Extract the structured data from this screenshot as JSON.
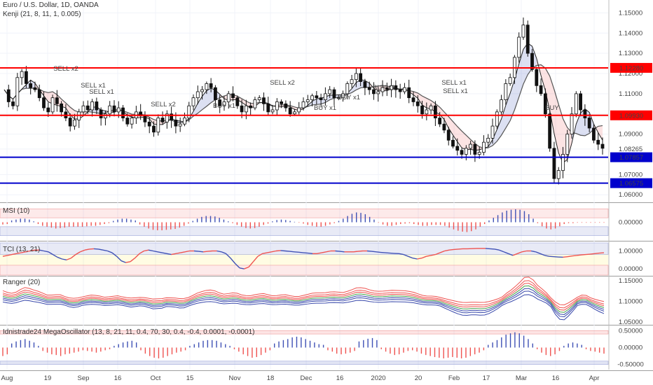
{
  "chart_data": [
    {
      "type": "candlestick",
      "title": "Euro / U.S. Dollar, 1D, OANDA",
      "subtitle": "Kenji (21, 8, 11, 1, 0.005)",
      "ylim": [
        1.058,
        1.155
      ],
      "y_ticks": [
        "1.15000",
        "1.14000",
        "1.13000",
        "1.12000",
        "1.11000",
        "1.10000",
        "1.09000",
        "1.08265",
        "1.07000",
        "1.06000"
      ],
      "levels": [
        {
          "value": 1.1228,
          "label": "1.12280",
          "color": "#ff0000"
        },
        {
          "value": 1.0993,
          "label": "1.09930",
          "color": "#ff0000"
        },
        {
          "value": 1.07857,
          "label": "1.07857",
          "color": "#0000cc"
        },
        {
          "value": 1.06575,
          "label": "1.06575",
          "color": "#0000cc"
        }
      ],
      "signals": [
        {
          "text": "SELL x2",
          "color": "#e53935"
        },
        {
          "text": "SELL x1",
          "color": "#e53935"
        },
        {
          "text": "SELL x1",
          "color": "#e53935"
        },
        {
          "text": "SELL x2",
          "color": "#e53935"
        },
        {
          "text": "SELL x2",
          "color": "#e53935"
        },
        {
          "text": "SELL x1",
          "color": "#e53935"
        },
        {
          "text": "SELL x1",
          "color": "#e53935"
        },
        {
          "text": "BUY x1",
          "color": "#5c6bc0"
        },
        {
          "text": "BUY x1",
          "color": "#5c6bc0"
        },
        {
          "text": "BUY x1",
          "color": "#5c6bc0"
        },
        {
          "text": "BUY x1",
          "color": "#5c6bc0"
        },
        {
          "text": "BUY",
          "color": "#5c6bc0"
        }
      ],
      "close_path": [
        1.112,
        1.106,
        1.104,
        1.118,
        1.121,
        1.115,
        1.113,
        1.112,
        1.108,
        1.103,
        1.101,
        1.108,
        1.105,
        1.101,
        1.098,
        1.094,
        1.097,
        1.101,
        1.104,
        1.102,
        1.106,
        1.102,
        1.098,
        1.1,
        1.104,
        1.101,
        1.103,
        1.098,
        1.095,
        1.098,
        1.101,
        1.099,
        1.096,
        1.094,
        1.091,
        1.098,
        1.096,
        1.1,
        1.097,
        1.094,
        1.095,
        1.098,
        1.104,
        1.108,
        1.111,
        1.112,
        1.115,
        1.113,
        1.107,
        1.104,
        1.106,
        1.11,
        1.108,
        1.104,
        1.101,
        1.104,
        1.103,
        1.107,
        1.108,
        1.105,
        1.101,
        1.102,
        1.106,
        1.105,
        1.103,
        1.1,
        1.101,
        1.103,
        1.106,
        1.107,
        1.109,
        1.108,
        1.107,
        1.11,
        1.112,
        1.108,
        1.108,
        1.11,
        1.115,
        1.117,
        1.12,
        1.116,
        1.113,
        1.112,
        1.11,
        1.111,
        1.113,
        1.112,
        1.114,
        1.112,
        1.111,
        1.113,
        1.108,
        1.106,
        1.104,
        1.1,
        1.102,
        1.104,
        1.098,
        1.095,
        1.092,
        1.087,
        1.084,
        1.082,
        1.08,
        1.083,
        1.085,
        1.08,
        1.081,
        1.086,
        1.088,
        1.094,
        1.101,
        1.107,
        1.115,
        1.118,
        1.128,
        1.138,
        1.144,
        1.13,
        1.122,
        1.114,
        1.11,
        1.1,
        1.083,
        1.068,
        1.072,
        1.08,
        1.09,
        1.1,
        1.11,
        1.102,
        1.098,
        1.093,
        1.087,
        1.085,
        1.083
      ]
    },
    {
      "type": "histogram",
      "title": "MSI (10)",
      "ylim": [
        -0.04,
        0.04
      ],
      "y_ticks": [
        "0.00000"
      ],
      "values": [
        -0.005,
        -0.004,
        0.004,
        0.006,
        0.008,
        0.008,
        0.006,
        0.002,
        -0.004,
        -0.008,
        -0.01,
        -0.012,
        -0.014,
        -0.013,
        -0.012,
        -0.01,
        -0.01,
        -0.01,
        -0.01,
        -0.009,
        -0.008,
        -0.008,
        -0.006,
        -0.004,
        -0.002,
        0.003,
        0.006,
        0.008,
        0.008,
        0.006,
        0.004,
        -0.005,
        -0.01,
        -0.014,
        -0.017,
        -0.018,
        -0.018,
        -0.017,
        -0.016,
        -0.015,
        -0.012,
        -0.008,
        -0.003,
        0.003,
        0.008,
        0.012,
        0.014,
        0.014,
        0.013,
        0.01,
        0.006,
        0.002,
        -0.002,
        -0.006,
        -0.01,
        -0.013,
        -0.014,
        -0.013,
        -0.01,
        -0.006,
        -0.003,
        0.002,
        0.005,
        0.006,
        0.005,
        0.003,
        0.001,
        -0.001,
        -0.003,
        -0.006,
        -0.008,
        -0.01,
        -0.01,
        -0.008,
        -0.005,
        -0.002,
        0.003,
        0.008,
        0.014,
        0.019,
        0.022,
        0.021,
        0.018,
        0.012,
        0.006,
        -0.001,
        -0.005,
        -0.008,
        -0.008,
        -0.006,
        -0.004,
        -0.003,
        -0.002,
        -0.004,
        -0.006,
        -0.008,
        -0.008,
        -0.006,
        -0.006,
        -0.006,
        -0.008,
        -0.012,
        -0.016,
        -0.019,
        -0.021,
        -0.022,
        -0.02,
        -0.016,
        -0.01,
        -0.004,
        0.004,
        0.01,
        0.016,
        0.022,
        0.026,
        0.028,
        0.029,
        0.028,
        0.025,
        0.018,
        0.008,
        -0.002,
        -0.009,
        -0.014,
        -0.016,
        -0.014,
        -0.009,
        -0.004,
        -0.002,
        -0.002,
        -0.001,
        -0.001,
        -0.001,
        -0.001,
        -0.001,
        -0.001,
        -0.001
      ]
    },
    {
      "type": "line",
      "title": "TCI (13, 21)",
      "ylim": [
        -0.35,
        1.45
      ],
      "y_ticks": [
        "1.00000",
        "0.00000"
      ],
      "values": [
        0.7,
        0.75,
        0.8,
        0.85,
        0.9,
        0.95,
        1.0,
        1.05,
        1.05,
        1.0,
        0.95,
        0.8,
        0.65,
        0.55,
        0.5,
        0.6,
        0.8,
        0.95,
        1.05,
        1.1,
        1.12,
        1.1,
        1.05,
        1.0,
        0.9,
        0.7,
        0.45,
        0.35,
        0.4,
        0.6,
        0.85,
        1.0,
        1.05,
        1.0,
        0.95,
        0.9,
        0.85,
        0.8,
        0.85,
        0.9,
        0.95,
        1.0,
        1.0,
        0.98,
        0.95,
        0.98,
        1.0,
        1.0,
        0.95,
        0.85,
        0.6,
        0.3,
        0.05,
        0.0,
        0.1,
        0.4,
        0.7,
        0.85,
        0.9,
        0.95,
        1.0,
        1.02,
        1.0,
        0.98,
        0.95,
        0.93,
        0.9,
        0.88,
        0.85,
        0.85,
        0.9,
        0.95,
        1.0,
        1.0,
        0.98,
        0.95,
        0.95,
        0.95,
        0.98,
        1.0,
        1.0,
        0.98,
        0.95,
        0.92,
        0.9,
        0.88,
        0.86,
        0.85,
        0.8,
        0.7,
        0.6,
        0.55,
        0.6,
        0.7,
        0.75,
        0.8,
        0.9,
        1.0,
        1.05,
        1.08,
        1.1,
        1.12,
        1.12,
        1.13,
        1.14,
        1.14,
        1.14,
        1.12,
        1.1,
        1.05,
        0.95,
        0.85,
        0.75,
        0.85,
        0.95,
        1.0,
        1.0,
        0.95,
        0.85,
        0.75,
        0.7,
        0.68,
        0.66,
        0.65,
        0.68,
        0.72,
        0.75,
        0.78,
        0.8,
        0.82,
        0.85,
        0.88,
        0.9
      ]
    },
    {
      "type": "line",
      "title": "Ranger (20)",
      "ylim": [
        1.045,
        1.16
      ],
      "y_ticks": [
        "1.15000",
        "1.10000",
        "1.05000"
      ],
      "series": [
        {
          "color": "#ef5350",
          "offset": 0.01
        },
        {
          "color": "#ef5350",
          "offset": 0.006
        },
        {
          "color": "#ef5350",
          "offset": 0.003
        },
        {
          "color": "#3949ab",
          "offset": -0.003
        },
        {
          "color": "#3949ab",
          "offset": -0.006
        },
        {
          "color": "#3949ab",
          "offset": -0.01
        }
      ]
    },
    {
      "type": "histogram",
      "title": "Idnistrade24 MegaOscillator (13, 8, 21, 11, 0.4, 70, 30, 0.4, -0.4, 0.0001, -0.0001)",
      "ylim": [
        -0.65,
        0.65
      ],
      "y_ticks": [
        "0.50000",
        "0.00000",
        "-0.50000"
      ],
      "values": [
        -0.25,
        -0.2,
        0.12,
        0.18,
        0.22,
        0.25,
        0.2,
        0.15,
        0.05,
        -0.1,
        -0.15,
        -0.2,
        -0.22,
        -0.25,
        -0.2,
        -0.18,
        -0.15,
        -0.12,
        -0.08,
        -0.1,
        -0.12,
        -0.15,
        -0.12,
        -0.08,
        -0.05,
        0.05,
        0.1,
        0.15,
        0.18,
        0.2,
        0.15,
        -0.08,
        -0.18,
        -0.25,
        -0.3,
        -0.32,
        -0.3,
        -0.25,
        -0.2,
        -0.15,
        -0.12,
        -0.08,
        0.05,
        0.1,
        0.15,
        0.2,
        0.22,
        0.22,
        0.2,
        0.15,
        0.1,
        0.05,
        -0.05,
        -0.12,
        -0.2,
        -0.25,
        -0.3,
        -0.28,
        -0.22,
        -0.15,
        -0.08,
        0.12,
        0.18,
        0.22,
        0.25,
        0.3,
        0.32,
        0.3,
        0.25,
        0.2,
        0.15,
        0.1,
        0.08,
        -0.08,
        -0.12,
        -0.18,
        -0.2,
        -0.18,
        -0.15,
        -0.1,
        0.18,
        0.22,
        0.26,
        0.28,
        0.22,
        -0.05,
        -0.12,
        -0.18,
        -0.22,
        -0.2,
        -0.15,
        -0.1,
        -0.08,
        -0.12,
        -0.18,
        -0.22,
        -0.25,
        -0.28,
        -0.3,
        -0.32,
        -0.3,
        -0.28,
        -0.3,
        -0.32,
        -0.3,
        -0.25,
        -0.2,
        -0.15,
        -0.08,
        0.08,
        0.15,
        0.22,
        0.3,
        0.38,
        0.42,
        0.45,
        0.42,
        0.35,
        0.25,
        0.12,
        -0.05,
        -0.15,
        -0.22,
        -0.25,
        -0.2,
        -0.1,
        0.05,
        0.12,
        0.15,
        0.12,
        0.08,
        -0.05,
        -0.1,
        -0.12,
        -0.15,
        -0.18
      ]
    }
  ],
  "x_axis_labels": [
    "Aug",
    "19",
    "Sep",
    "16",
    "Oct",
    "15",
    "Nov",
    "18",
    "Dec",
    "16",
    "2020",
    "20",
    "Feb",
    "17",
    "Mar",
    "16",
    "Apr"
  ],
  "footer_labels": {
    "left": "Aug",
    "right": "Apr"
  }
}
